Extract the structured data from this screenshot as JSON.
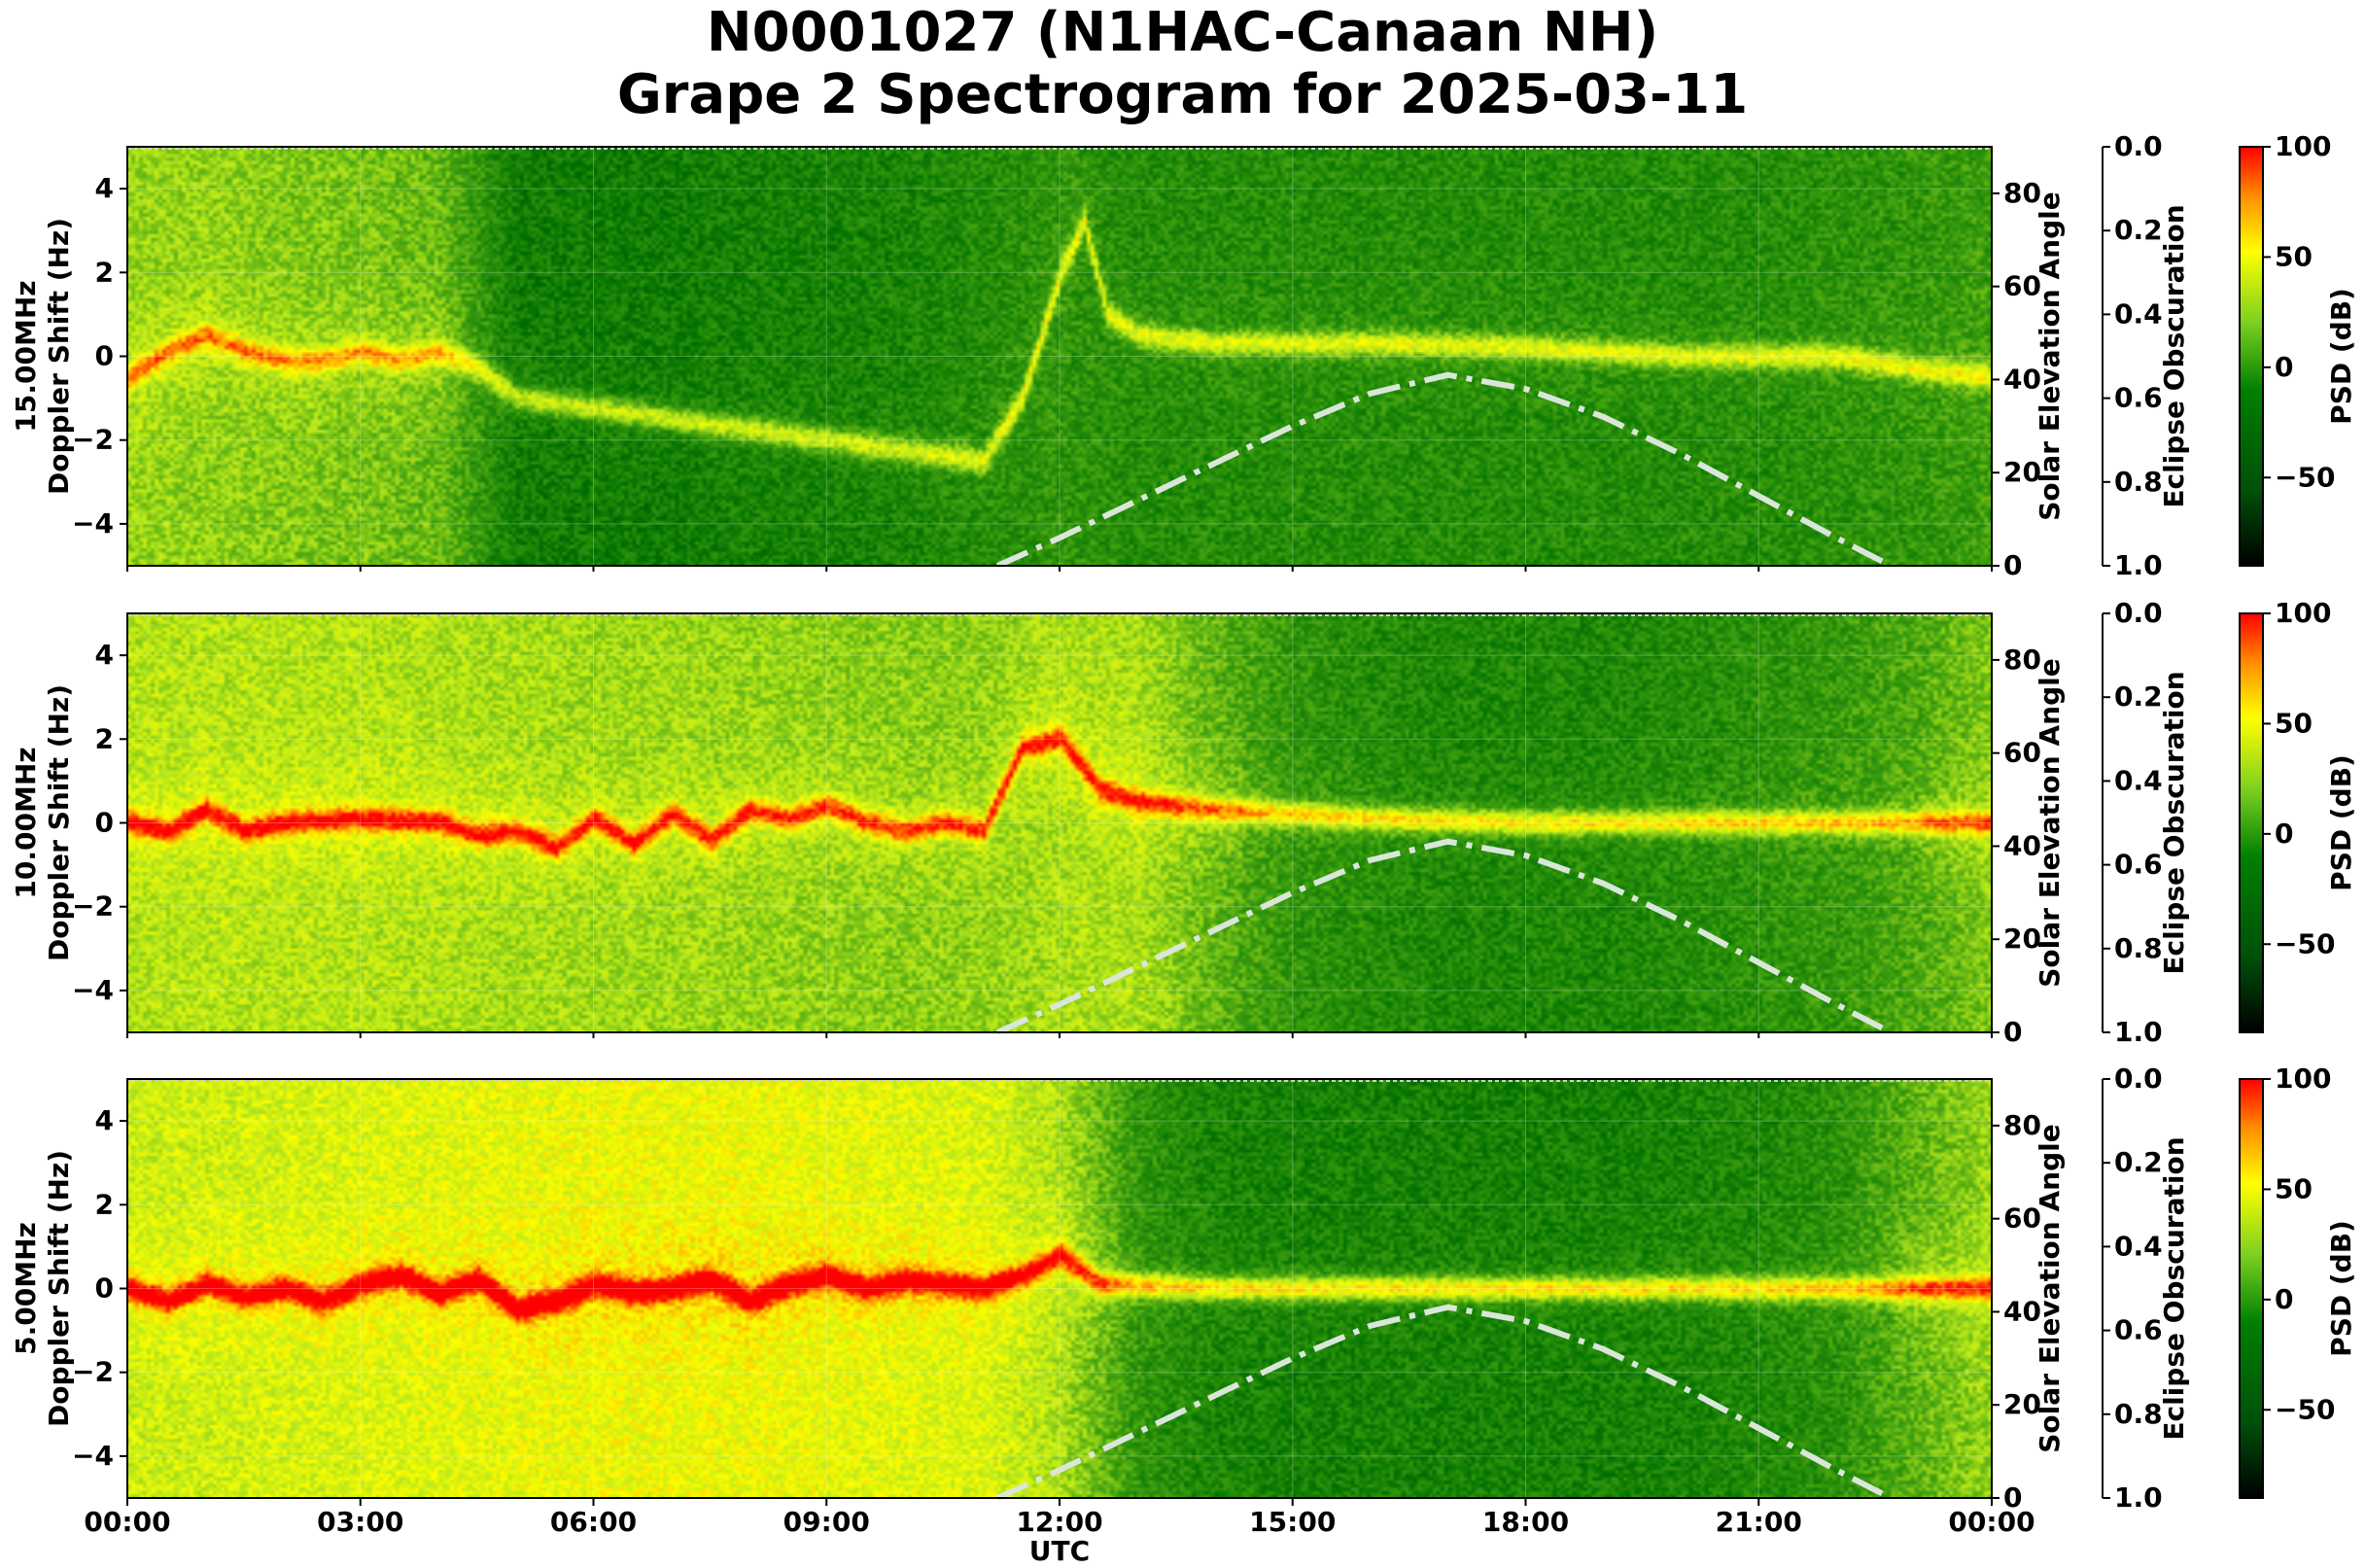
{
  "title_line1": "N0001027 (N1HAC-Canaan NH)",
  "title_line2": "Grape 2 Spectrogram for 2025-03-11",
  "colors": {
    "colormap": [
      "#000000",
      "#007000",
      "#3fa010",
      "#b8e81c",
      "#ffff00",
      "#ff9000",
      "#ff0000"
    ],
    "elevation_curve": "#d9e6d9"
  },
  "chart_data": [
    {
      "type": "heatmap",
      "panel_label": "15.00MHz",
      "ylabel": "Doppler Shift (Hz)",
      "xlabel": "",
      "ylim": [
        -5,
        5
      ],
      "yticks": [
        "4",
        "2",
        "0",
        "−2",
        "−4"
      ],
      "right_axis1": {
        "label": "Solar Elevation Angle",
        "range": [
          0,
          90
        ],
        "ticks": [
          "80",
          "60",
          "40",
          "20",
          "0"
        ]
      },
      "right_axis2": {
        "label": "Eclipse Obscuration",
        "range": [
          0.0,
          1.0
        ],
        "ticks": [
          "0.0",
          "0.2",
          "0.4",
          "0.6",
          "0.8",
          "1.0"
        ]
      },
      "colorbar": {
        "label": "PSD (dB)",
        "range": [
          -90,
          100
        ],
        "ticks": [
          "100",
          "50",
          "0",
          "−50"
        ]
      },
      "background_level_by_hour": [
        20,
        18,
        15,
        12,
        8,
        -25,
        -25,
        -25,
        -22,
        -22,
        -20,
        -15,
        -10,
        -15,
        -15,
        -15,
        -15,
        -15,
        -15,
        -15,
        -15,
        -15,
        -12,
        -10,
        -5
      ],
      "carrier_trace": {
        "t_hours": [
          0,
          0.5,
          1.0,
          1.5,
          2.0,
          2.5,
          3.0,
          3.5,
          4.0,
          4.5,
          5.0,
          11.0,
          11.5,
          12.0,
          12.3,
          12.6,
          13.0,
          13.5,
          14,
          16,
          18,
          20,
          22,
          23,
          24
        ],
        "doppler_hz": [
          -0.5,
          0.1,
          0.5,
          0.1,
          -0.1,
          -0.1,
          0.1,
          -0.1,
          0.1,
          -0.3,
          -1.0,
          -2.5,
          -1.0,
          2.0,
          3.2,
          1.0,
          0.5,
          0.4,
          0.3,
          0.3,
          0.2,
          0.0,
          0.0,
          -0.3,
          -0.5
        ],
        "strength_db": 55
      },
      "solar_elevation": {
        "t_hours": [
          11.2,
          12,
          13,
          14,
          15,
          16,
          17,
          18,
          19,
          20,
          21,
          22,
          22.7
        ],
        "deg": [
          0,
          6,
          14,
          22,
          30,
          37,
          41,
          38,
          32,
          24,
          15,
          6,
          0
        ]
      }
    },
    {
      "type": "heatmap",
      "panel_label": "10.00MHz",
      "ylabel": "Doppler Shift (Hz)",
      "xlabel": "",
      "ylim": [
        -5,
        5
      ],
      "yticks": [
        "4",
        "2",
        "0",
        "−2",
        "−4"
      ],
      "right_axis1": {
        "label": "Solar Elevation Angle",
        "range": [
          0,
          90
        ],
        "ticks": [
          "80",
          "60",
          "40",
          "20",
          "0"
        ]
      },
      "right_axis2": {
        "label": "Eclipse Obscuration",
        "range": [
          0.0,
          1.0
        ],
        "ticks": [
          "0.0",
          "0.2",
          "0.4",
          "0.6",
          "0.8",
          "1.0"
        ]
      },
      "colorbar": {
        "label": "PSD (dB)",
        "range": [
          -90,
          100
        ],
        "ticks": [
          "100",
          "50",
          "0",
          "−50"
        ]
      },
      "background_level_by_hour": [
        28,
        28,
        28,
        28,
        26,
        24,
        22,
        22,
        20,
        18,
        16,
        18,
        25,
        25,
        5,
        -10,
        -15,
        -18,
        -18,
        -18,
        -15,
        -12,
        -8,
        0,
        15
      ],
      "carrier_trace": {
        "t_hours": [
          0,
          0.5,
          1.0,
          1.5,
          2.0,
          3.0,
          4.0,
          4.5,
          5.0,
          5.5,
          6.0,
          6.5,
          7.0,
          7.5,
          8.0,
          8.5,
          9.0,
          9.5,
          10.0,
          10.5,
          11.0,
          11.5,
          12.0,
          12.5,
          13.0,
          14,
          16,
          18,
          20,
          22,
          24
        ],
        "doppler_hz": [
          0.0,
          -0.2,
          0.3,
          -0.2,
          0.0,
          0.1,
          0.0,
          -0.3,
          -0.2,
          -0.6,
          0.1,
          -0.5,
          0.2,
          -0.4,
          0.3,
          0.1,
          0.4,
          0.0,
          -0.2,
          0.0,
          -0.2,
          1.8,
          2.0,
          0.8,
          0.5,
          0.3,
          0.1,
          0.0,
          0.0,
          0.0,
          0.0
        ],
        "strength_db": 70
      },
      "solar_elevation": {
        "t_hours": [
          11.2,
          12,
          13,
          14,
          15,
          16,
          17,
          18,
          19,
          20,
          21,
          22,
          22.7
        ],
        "deg": [
          0,
          6,
          14,
          22,
          30,
          37,
          41,
          38,
          32,
          24,
          15,
          6,
          0
        ]
      }
    },
    {
      "type": "heatmap",
      "panel_label": "5.00MHz",
      "ylabel": "Doppler Shift (Hz)",
      "xlabel": "UTC",
      "ylim": [
        -5,
        5
      ],
      "yticks": [
        "4",
        "2",
        "0",
        "−2",
        "−4"
      ],
      "xticks": [
        "00:00",
        "03:00",
        "06:00",
        "09:00",
        "12:00",
        "15:00",
        "18:00",
        "21:00",
        "00:00"
      ],
      "right_axis1": {
        "label": "Solar Elevation Angle",
        "range": [
          0,
          90
        ],
        "ticks": [
          "80",
          "60",
          "40",
          "20",
          "0"
        ]
      },
      "right_axis2": {
        "label": "Eclipse Obscuration",
        "range": [
          0.0,
          1.0
        ],
        "ticks": [
          "0.0",
          "0.2",
          "0.4",
          "0.6",
          "0.8",
          "1.0"
        ]
      },
      "colorbar": {
        "label": "PSD (dB)",
        "range": [
          -90,
          100
        ],
        "ticks": [
          "100",
          "50",
          "0",
          "−50"
        ]
      },
      "background_level_by_hour": [
        35,
        36,
        38,
        40,
        42,
        44,
        46,
        46,
        46,
        44,
        42,
        40,
        25,
        -10,
        -20,
        -22,
        -22,
        -22,
        -22,
        -22,
        -20,
        -18,
        -12,
        5,
        20
      ],
      "carrier_trace": {
        "t_hours": [
          0,
          0.5,
          1.0,
          1.5,
          2.0,
          2.5,
          3.0,
          3.5,
          4.0,
          4.5,
          5.0,
          5.5,
          6.0,
          6.5,
          7.0,
          7.5,
          8.0,
          8.5,
          9.0,
          9.5,
          10.0,
          10.5,
          11.0,
          11.5,
          12.0,
          12.5,
          14,
          16,
          18,
          20,
          22,
          24
        ],
        "doppler_hz": [
          0.0,
          -0.3,
          0.1,
          -0.2,
          0.0,
          -0.3,
          0.1,
          0.3,
          -0.1,
          0.2,
          -0.5,
          -0.3,
          0.1,
          -0.1,
          0.0,
          0.2,
          -0.3,
          0.1,
          0.3,
          0.0,
          0.2,
          0.1,
          0.0,
          0.3,
          0.8,
          0.1,
          0.0,
          0.0,
          0.0,
          0.0,
          0.0,
          0.0
        ],
        "strength_db": 75
      },
      "solar_elevation": {
        "t_hours": [
          11.2,
          12,
          13,
          14,
          15,
          16,
          17,
          18,
          19,
          20,
          21,
          22,
          22.7
        ],
        "deg": [
          0,
          6,
          14,
          22,
          30,
          37,
          41,
          38,
          32,
          24,
          15,
          6,
          0
        ]
      }
    }
  ]
}
